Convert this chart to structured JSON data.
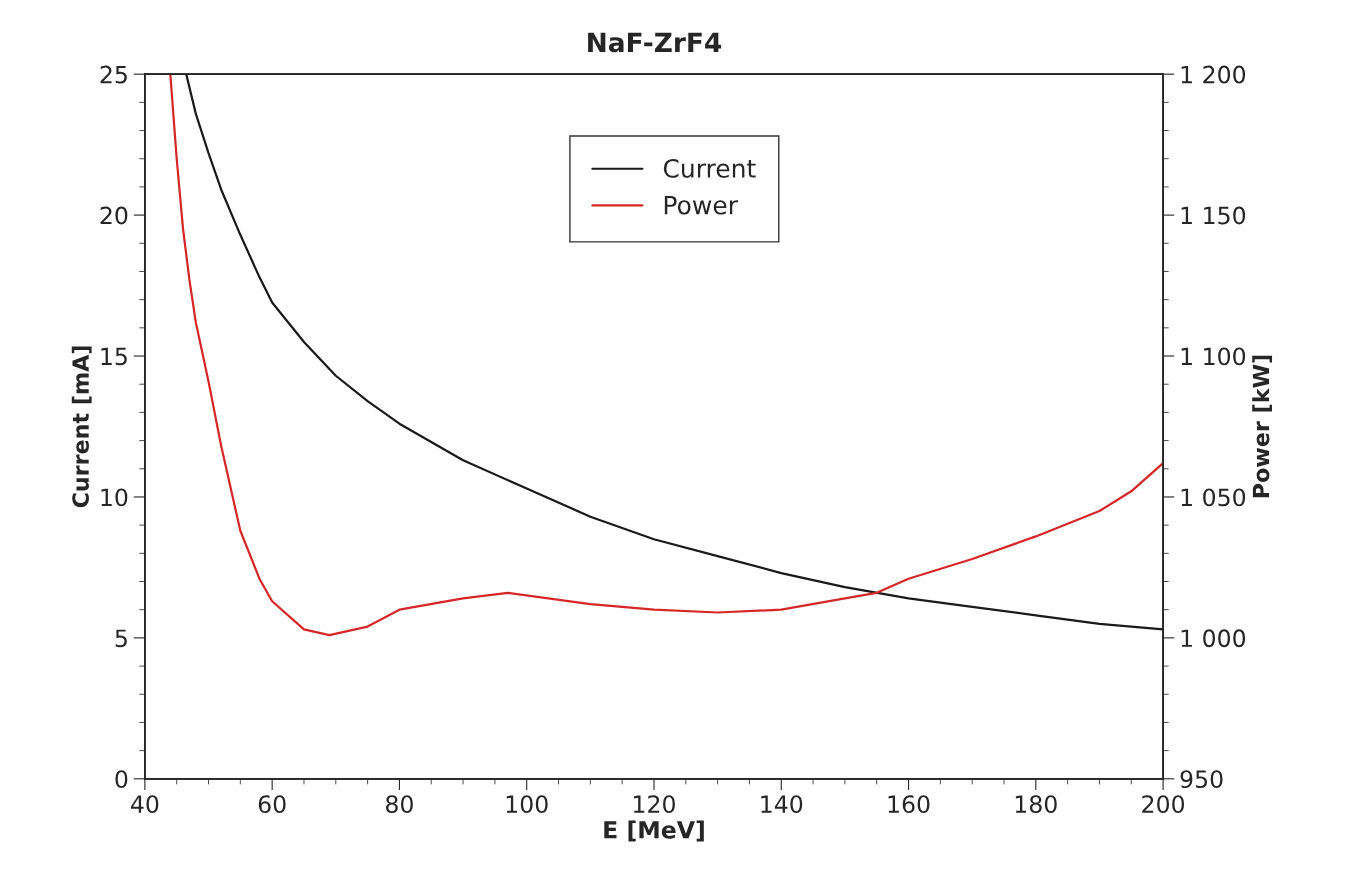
{
  "chart_data": {
    "type": "line",
    "title": "NaF-ZrF4",
    "xlabel": "E [MeV]",
    "ylabel": "Current [mA]",
    "y2label": "Power [kW]",
    "xlim": [
      40,
      200
    ],
    "xticks": [
      40,
      60,
      80,
      100,
      120,
      140,
      160,
      180,
      200
    ],
    "ylim": [
      0,
      25
    ],
    "yticks": [
      0,
      5,
      10,
      15,
      20,
      25
    ],
    "y2lim": [
      950,
      1200
    ],
    "y2ticks": [
      950,
      {
        "value": 1000,
        "label": "1 000"
      },
      {
        "value": 1050,
        "label": "1 050"
      },
      {
        "value": 1100,
        "label": "1 100"
      },
      {
        "value": 1150,
        "label": "1 150"
      },
      {
        "value": 1200,
        "label": "1 200"
      }
    ],
    "legend": "top",
    "grid": false,
    "marker": "none",
    "line_style": "solid",
    "series": [
      {
        "name": "Current",
        "color": "#1a1a1a",
        "x": [
          46.5,
          48,
          50,
          52,
          55,
          58,
          60,
          65,
          70,
          75,
          80,
          90,
          100,
          110,
          120,
          130,
          140,
          150,
          160,
          170,
          180,
          190,
          200
        ],
        "values": [
          25,
          23.6,
          22.2,
          20.9,
          19.3,
          17.8,
          16.9,
          15.5,
          14.3,
          13.4,
          12.6,
          11.3,
          10.3,
          9.3,
          8.5,
          7.9,
          7.3,
          6.8,
          6.4,
          6.1,
          5.8,
          5.5,
          5.3
        ]
      },
      {
        "name": "Power",
        "color": "#d62728",
        "axis": "y2",
        "x": [
          44,
          45,
          46,
          47,
          48,
          50,
          52,
          55,
          58,
          60,
          65,
          69,
          75,
          80,
          90,
          97,
          110,
          120,
          130,
          140,
          150,
          155,
          160,
          170,
          180,
          190,
          195,
          200
        ],
        "values": [
          1200,
          1170,
          1145,
          1127,
          1112,
          1091,
          1068,
          1038,
          1021,
          1013,
          1003,
          1001,
          1004,
          1010,
          1014,
          1016,
          1012,
          1010,
          1009,
          1010,
          1014,
          1016,
          1021,
          1028,
          1036,
          1045,
          1052,
          1062
        ]
      }
    ]
  }
}
